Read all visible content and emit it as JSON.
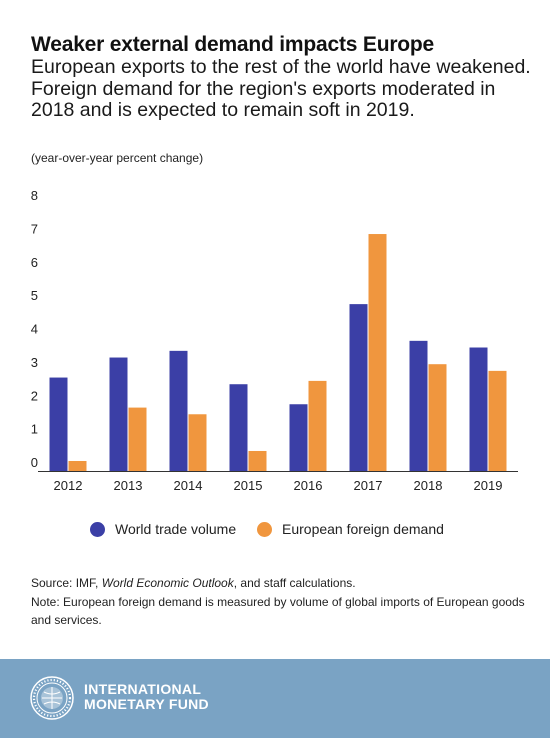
{
  "header": {
    "title": "Weaker external demand impacts Europe",
    "subtitle": "European exports to the rest of the world have weakened. Foreign demand for the region's exports moderated in 2018 and is expected to remain soft in 2019.",
    "unit": "(year-over-year percent change)"
  },
  "chart_data": {
    "type": "bar",
    "categories": [
      "2012",
      "2013",
      "2014",
      "2015",
      "2016",
      "2017",
      "2018",
      "2019"
    ],
    "series": [
      {
        "name": "World trade volume",
        "color": "#3b3fa6",
        "values": [
          2.8,
          3.4,
          3.6,
          2.6,
          2.0,
          5.0,
          3.9,
          3.7
        ]
      },
      {
        "name": "European foreign demand",
        "color": "#f0963e",
        "values": [
          0.3,
          1.9,
          1.7,
          0.6,
          2.7,
          7.1,
          3.2,
          3.0
        ]
      }
    ],
    "yticks": [
      "0",
      "1",
      "2",
      "3",
      "4",
      "5",
      "6",
      "7",
      "8"
    ],
    "ylim": [
      0,
      8
    ],
    "legend_position": "bottom",
    "grid": false
  },
  "notes": {
    "source_prefix": "Source: IMF, ",
    "source_italic": "World Economic Outlook",
    "source_suffix": ", and staff calculations.",
    "note": "Note: European foreign demand is measured by volume of global imports of European goods and services."
  },
  "footer": {
    "org_line1": "INTERNATIONAL",
    "org_line2": "MONETARY FUND",
    "background": "#7aa3c4",
    "logo_icon": "imf-seal-icon"
  }
}
